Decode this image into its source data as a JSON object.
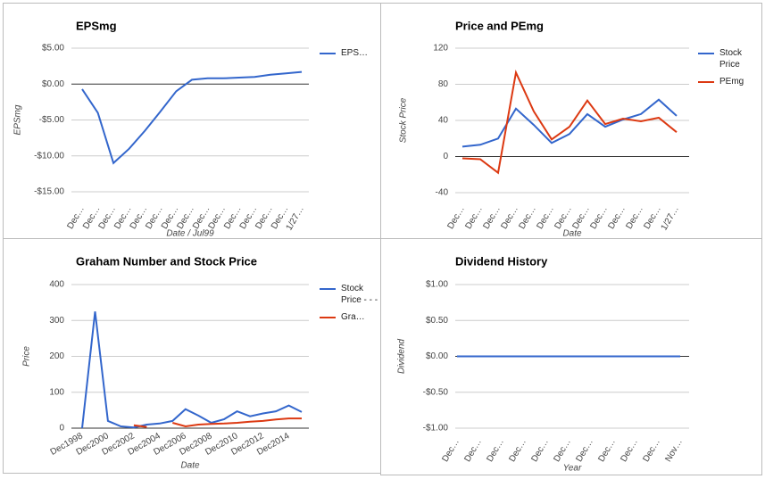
{
  "chart_data": [
    {
      "type": "line",
      "title": "EPSmg",
      "xlabel": "Date / Jul99",
      "ylabel": "EPSmg",
      "categories": [
        "Dec…",
        "Dec…",
        "Dec…",
        "Dec…",
        "Dec…",
        "Dec…",
        "Dec…",
        "Dec…",
        "Dec…",
        "Dec…",
        "Dec…",
        "Dec…",
        "Dec…",
        "Dec…",
        "1/27…"
      ],
      "series": [
        {
          "name": "EPS…",
          "color": "#3366cc",
          "values": [
            -0.7,
            -4,
            -11,
            -9,
            -6.5,
            -3.8,
            -1,
            0.6,
            0.8,
            0.8,
            0.9,
            1.0,
            1.3,
            1.5,
            1.7
          ]
        }
      ],
      "ylim": [
        -15,
        5
      ],
      "yticks": [
        {
          "value": 5,
          "label": "$5.00"
        },
        {
          "value": 0,
          "label": "$0.00"
        },
        {
          "value": -5,
          "label": "-$5.00"
        },
        {
          "value": -10,
          "label": "-$10.00"
        },
        {
          "value": -15,
          "label": "-$15.00"
        }
      ],
      "grid": true,
      "legend": "right"
    },
    {
      "type": "line",
      "title": "Price and PEmg",
      "xlabel": "Date",
      "ylabel": "Stock Price",
      "categories": [
        "Dec…",
        "Dec…",
        "Dec…",
        "Dec…",
        "Dec…",
        "Dec…",
        "Dec…",
        "Dec…",
        "Dec…",
        "Dec…",
        "Dec…",
        "Dec…",
        "1/27…"
      ],
      "series": [
        {
          "name": "Stock Price",
          "color": "#3366cc",
          "values": [
            11,
            13,
            20,
            53,
            35,
            15,
            25,
            47,
            33,
            41,
            47,
            63,
            45
          ]
        },
        {
          "name": "PEmg",
          "color": "#dc3912",
          "values": [
            -2,
            -3,
            -18,
            93,
            50,
            19,
            33,
            62,
            36,
            42,
            39,
            43,
            27
          ]
        }
      ],
      "ylim": [
        -40,
        120
      ],
      "yticks": [
        120,
        80,
        40,
        0,
        -40
      ],
      "grid": true,
      "legend": "right"
    },
    {
      "type": "line",
      "title": "Graham Number and Stock Price",
      "xlabel": "Date",
      "ylabel": "Price",
      "categories": [
        "Dec1998",
        null,
        "Dec2000",
        null,
        "Dec2002",
        null,
        "Dec2004",
        null,
        "Dec2006",
        null,
        "Dec2008",
        null,
        "Dec2010",
        null,
        "Dec2012",
        null,
        "Dec2014",
        null
      ],
      "series": [
        {
          "name": "Stock Price - - -",
          "color": "#3366cc",
          "values": [
            0,
            325,
            20,
            5,
            2,
            10,
            13,
            20,
            53,
            35,
            15,
            25,
            47,
            33,
            41,
            47,
            63,
            45
          ]
        },
        {
          "name": "Gra…",
          "color": "#dc3912",
          "values": [
            null,
            null,
            null,
            null,
            8,
            3,
            null,
            15,
            5,
            10,
            12,
            13,
            15,
            18,
            20,
            24,
            27,
            27
          ]
        }
      ],
      "ylim": [
        0,
        400
      ],
      "yticks": [
        400,
        300,
        200,
        100,
        0
      ],
      "grid": true,
      "legend": "right"
    },
    {
      "type": "line",
      "title": "Dividend History",
      "xlabel": "Year",
      "ylabel": "Dividend",
      "categories": [
        "Dec…",
        "Dec…",
        "Dec…",
        "Dec…",
        "Dec…",
        "Dec…",
        "Dec…",
        "Dec…",
        "Dec…",
        "Dec…",
        "Nov…"
      ],
      "color": "#3366cc",
      "values": [
        0,
        0,
        0,
        0,
        0,
        0,
        0,
        0,
        0,
        0,
        0
      ],
      "ylim": [
        -1,
        1
      ],
      "yticks": [
        {
          "value": 1,
          "label": "$1.00"
        },
        {
          "value": 0.5,
          "label": "$0.50"
        },
        {
          "value": 0,
          "label": "$0.00"
        },
        {
          "value": -0.5,
          "label": "-$0.50"
        },
        {
          "value": -1,
          "label": "-$1.00"
        }
      ],
      "grid": true
    }
  ]
}
